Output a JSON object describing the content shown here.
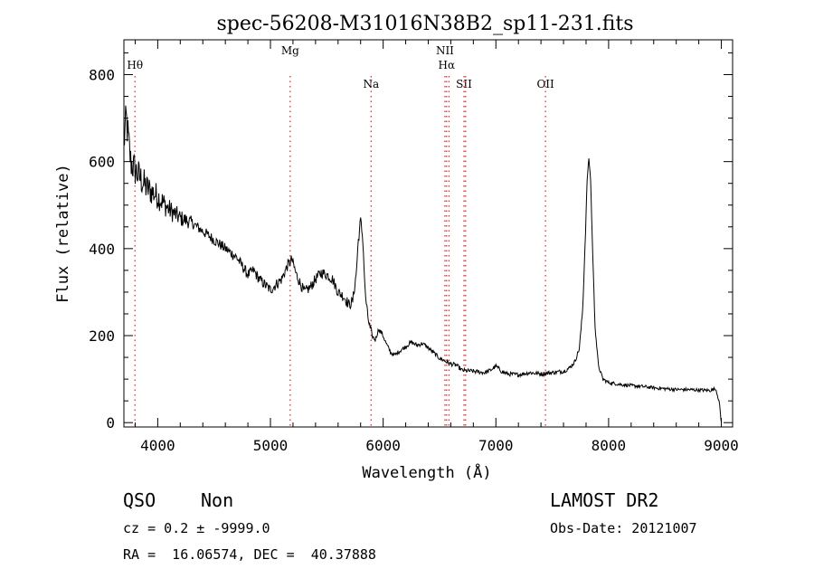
{
  "chart_data": {
    "type": "line",
    "title": "spec-56208-M31016N38B2_sp11-231.fits",
    "xlabel": "Wavelength (Å)",
    "ylabel": "Flux (relative)",
    "xlim": [
      3700,
      9100
    ],
    "ylim": [
      -10,
      880
    ],
    "xticks": [
      4000,
      5000,
      6000,
      7000,
      8000,
      9000
    ],
    "yticks": [
      0,
      200,
      400,
      600,
      800
    ],
    "grid": false,
    "line_color": "#000000",
    "marker_color": "#e03030",
    "spectrum_anchors": [
      [
        3700,
        640
      ],
      [
        3720,
        700
      ],
      [
        3760,
        600
      ],
      [
        3800,
        580
      ],
      [
        3900,
        540
      ],
      [
        4000,
        520
      ],
      [
        4100,
        490
      ],
      [
        4200,
        470
      ],
      [
        4300,
        460
      ],
      [
        4400,
        440
      ],
      [
        4500,
        420
      ],
      [
        4600,
        400
      ],
      [
        4700,
        380
      ],
      [
        4800,
        340
      ],
      [
        4850,
        350
      ],
      [
        4900,
        330
      ],
      [
        5000,
        305
      ],
      [
        5100,
        330
      ],
      [
        5150,
        360
      ],
      [
        5190,
        375
      ],
      [
        5230,
        340
      ],
      [
        5300,
        300
      ],
      [
        5350,
        310
      ],
      [
        5400,
        330
      ],
      [
        5450,
        345
      ],
      [
        5500,
        340
      ],
      [
        5550,
        330
      ],
      [
        5600,
        300
      ],
      [
        5650,
        290
      ],
      [
        5700,
        270
      ],
      [
        5730,
        280
      ],
      [
        5760,
        340
      ],
      [
        5780,
        420
      ],
      [
        5800,
        465
      ],
      [
        5820,
        420
      ],
      [
        5840,
        300
      ],
      [
        5860,
        250
      ],
      [
        5880,
        220
      ],
      [
        5900,
        200
      ],
      [
        5930,
        190
      ],
      [
        5960,
        215
      ],
      [
        5990,
        205
      ],
      [
        6030,
        180
      ],
      [
        6070,
        160
      ],
      [
        6100,
        155
      ],
      [
        6150,
        165
      ],
      [
        6200,
        175
      ],
      [
        6250,
        185
      ],
      [
        6300,
        178
      ],
      [
        6350,
        182
      ],
      [
        6400,
        172
      ],
      [
        6450,
        160
      ],
      [
        6500,
        148
      ],
      [
        6560,
        140
      ],
      [
        6600,
        135
      ],
      [
        6650,
        132
      ],
      [
        6700,
        120
      ],
      [
        6800,
        118
      ],
      [
        6900,
        115
      ],
      [
        6950,
        120
      ],
      [
        7000,
        130
      ],
      [
        7050,
        118
      ],
      [
        7100,
        112
      ],
      [
        7200,
        110
      ],
      [
        7300,
        115
      ],
      [
        7400,
        112
      ],
      [
        7500,
        115
      ],
      [
        7600,
        118
      ],
      [
        7650,
        125
      ],
      [
        7700,
        140
      ],
      [
        7740,
        170
      ],
      [
        7770,
        260
      ],
      [
        7790,
        400
      ],
      [
        7810,
        560
      ],
      [
        7825,
        608
      ],
      [
        7840,
        560
      ],
      [
        7860,
        380
      ],
      [
        7880,
        220
      ],
      [
        7910,
        130
      ],
      [
        7950,
        100
      ],
      [
        8000,
        92
      ],
      [
        8100,
        88
      ],
      [
        8200,
        85
      ],
      [
        8300,
        83
      ],
      [
        8400,
        80
      ],
      [
        8500,
        78
      ],
      [
        8600,
        76
      ],
      [
        8700,
        76
      ],
      [
        8800,
        75
      ],
      [
        8900,
        74
      ],
      [
        8950,
        78
      ],
      [
        8980,
        50
      ],
      [
        9000,
        0
      ]
    ],
    "lines": [
      {
        "label": "Hθ",
        "x": 3798,
        "label_row": 1
      },
      {
        "label": "Mg",
        "x": 5175,
        "label_row": 0
      },
      {
        "label": "Na",
        "x": 5893,
        "label_row": 2
      },
      {
        "label": "NII",
        "x": 6548,
        "label_row": 0
      },
      {
        "label": "Hα",
        "x": 6563,
        "label_row": 1
      },
      {
        "label": "NII",
        "x": 6584,
        "label_row": -1
      },
      {
        "label": "SII",
        "x": 6717,
        "label_row": 2
      },
      {
        "label": "SII",
        "x": 6731,
        "label_row": -1
      },
      {
        "label": "OII",
        "x": 7440,
        "label_row": 2
      }
    ]
  },
  "footer": {
    "class": "QSO",
    "subclass": "Non",
    "cz": "cz = 0.2 ± -9999.0",
    "coords": "RA =  16.06574, DEC =  40.37888",
    "survey": "LAMOST DR2",
    "obs_date": "Obs-Date: 20121007"
  }
}
